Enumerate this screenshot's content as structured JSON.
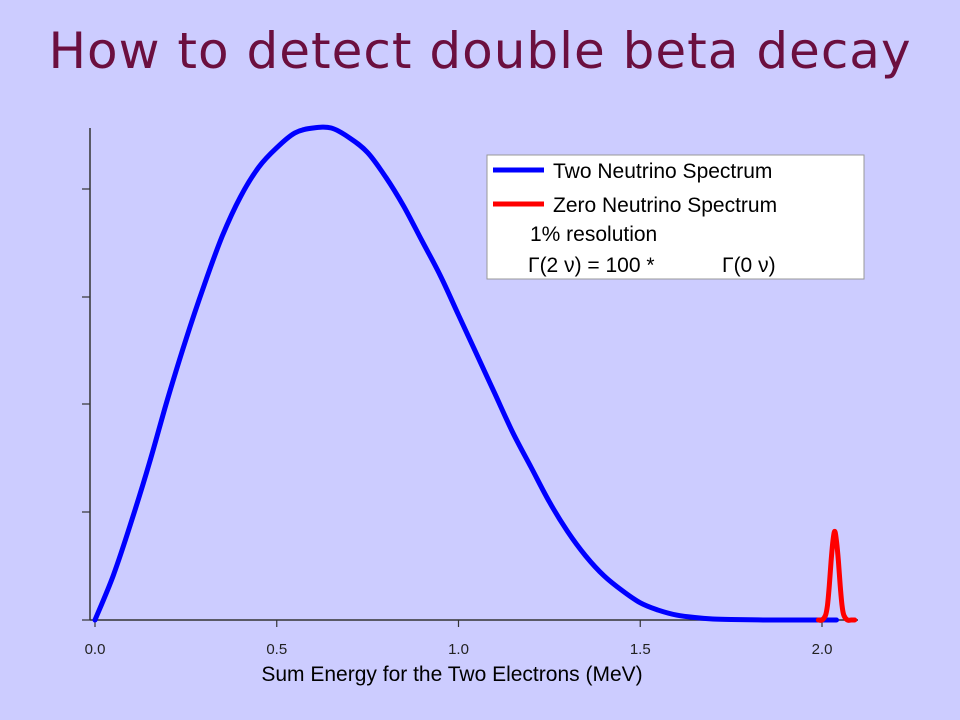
{
  "slide": {
    "title": "How to detect double beta decay"
  },
  "chart_data": {
    "type": "line",
    "title": "How to detect double beta decay",
    "xlabel": "Sum Energy for the Two Electrons (MeV)",
    "ylabel": "",
    "xlim": [
      0.0,
      2.1
    ],
    "ylim": [
      0,
      1.0
    ],
    "x_ticks": [
      "0.0",
      "0.5",
      "1.0",
      "1.5",
      "2.0"
    ],
    "y_ticks_count": 5,
    "grid": false,
    "legend_position": "top-right",
    "colors": {
      "two_neutrino": "#0000ff",
      "zero_neutrino": "#ff0000",
      "background": "#ccccff",
      "title": "#6b0f3f"
    },
    "series": [
      {
        "name": "Two Neutrino Spectrum",
        "color": "#0000ff",
        "x": [
          0.0,
          0.05,
          0.1,
          0.15,
          0.2,
          0.25,
          0.3,
          0.35,
          0.4,
          0.45,
          0.5,
          0.55,
          0.6,
          0.65,
          0.7,
          0.75,
          0.8,
          0.85,
          0.9,
          0.95,
          1.0,
          1.05,
          1.1,
          1.15,
          1.2,
          1.25,
          1.3,
          1.35,
          1.4,
          1.45,
          1.5,
          1.55,
          1.6,
          1.65,
          1.7,
          1.75,
          1.8,
          1.85,
          1.9,
          1.95,
          2.0,
          2.04
        ],
        "y": [
          0.0,
          0.09,
          0.2,
          0.32,
          0.45,
          0.57,
          0.68,
          0.78,
          0.86,
          0.92,
          0.96,
          0.99,
          1.0,
          1.0,
          0.98,
          0.95,
          0.9,
          0.84,
          0.77,
          0.7,
          0.62,
          0.54,
          0.46,
          0.38,
          0.31,
          0.24,
          0.18,
          0.13,
          0.09,
          0.06,
          0.035,
          0.02,
          0.01,
          0.005,
          0.002,
          0.001,
          0.0005,
          0.0,
          0.0,
          0.0,
          0.0,
          0.0
        ]
      },
      {
        "name": "Zero Neutrino Spectrum",
        "color": "#ff0000",
        "x": [
          1.99,
          2.0,
          2.01,
          2.015,
          2.02,
          2.025,
          2.03,
          2.035,
          2.04,
          2.045,
          2.05,
          2.055,
          2.06,
          2.07,
          2.08,
          2.09
        ],
        "y": [
          0.0,
          0.0,
          0.01,
          0.03,
          0.07,
          0.12,
          0.16,
          0.18,
          0.16,
          0.12,
          0.07,
          0.03,
          0.01,
          0.0,
          0.0,
          0.0
        ]
      }
    ],
    "legend": {
      "entries": [
        "Two Neutrino Spectrum",
        "Zero Neutrino Spectrum"
      ],
      "notes": [
        "1% resolution",
        "Γ(2 ν) = 100 *",
        "Γ(0 ν)"
      ]
    }
  }
}
